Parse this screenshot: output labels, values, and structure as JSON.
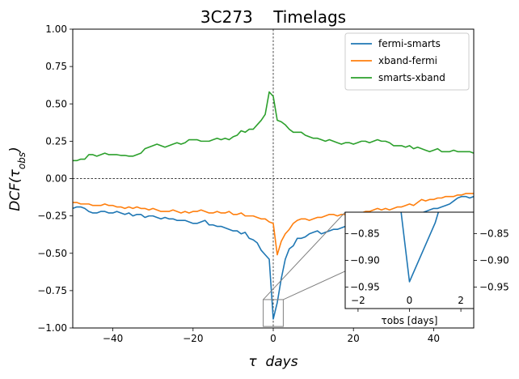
{
  "chart_data": {
    "type": "line",
    "title": "3C273    Timelags",
    "xlabel": "τ  days",
    "ylabel": "DCF(τobs)",
    "xlim": [
      -50,
      50
    ],
    "ylim": [
      -1.0,
      1.0
    ],
    "xticks": [
      -40,
      -20,
      0,
      20,
      40
    ],
    "yticks": [
      -1.0,
      -0.75,
      -0.5,
      -0.25,
      0.0,
      0.25,
      0.5,
      0.75,
      1.0
    ],
    "xtick_labels": [
      "−40",
      "−20",
      "0",
      "20",
      "40"
    ],
    "ytick_labels": [
      "−1.00",
      "−0.75",
      "−0.50",
      "−0.25",
      "0.00",
      "0.25",
      "0.50",
      "0.75",
      "1.00"
    ],
    "reference_lines": {
      "horizontal": 0.0,
      "vertical": 0.0,
      "style": "dashed"
    },
    "legend_position": "top-right",
    "series": [
      {
        "name": "fermi-smarts",
        "color": "#1f77b4",
        "x": [
          -50,
          -49,
          -48,
          -47,
          -46,
          -45,
          -44,
          -43,
          -42,
          -41,
          -40,
          -39,
          -38,
          -37,
          -36,
          -35,
          -34,
          -33,
          -32,
          -31,
          -30,
          -29,
          -28,
          -27,
          -26,
          -25,
          -24,
          -23,
          -22,
          -21,
          -20,
          -19,
          -18,
          -17,
          -16,
          -15,
          -14,
          -13,
          -12,
          -11,
          -10,
          -9,
          -8,
          -7,
          -6,
          -5,
          -4,
          -3,
          -2,
          -1,
          0,
          1,
          2,
          3,
          4,
          5,
          6,
          7,
          8,
          9,
          10,
          11,
          12,
          13,
          14,
          15,
          16,
          17,
          18,
          19,
          20,
          21,
          22,
          23,
          24,
          25,
          26,
          27,
          28,
          29,
          30,
          31,
          32,
          33,
          34,
          35,
          36,
          37,
          38,
          39,
          40,
          41,
          42,
          43,
          44,
          45,
          46,
          47,
          48,
          49,
          50
        ],
        "y": [
          -0.2,
          -0.19,
          -0.19,
          -0.2,
          -0.22,
          -0.23,
          -0.23,
          -0.22,
          -0.22,
          -0.23,
          -0.23,
          -0.22,
          -0.23,
          -0.24,
          -0.23,
          -0.25,
          -0.24,
          -0.24,
          -0.26,
          -0.25,
          -0.25,
          -0.26,
          -0.27,
          -0.26,
          -0.27,
          -0.27,
          -0.28,
          -0.28,
          -0.28,
          -0.29,
          -0.3,
          -0.3,
          -0.29,
          -0.28,
          -0.31,
          -0.31,
          -0.32,
          -0.32,
          -0.33,
          -0.34,
          -0.35,
          -0.35,
          -0.37,
          -0.36,
          -0.4,
          -0.41,
          -0.43,
          -0.48,
          -0.51,
          -0.54,
          -0.94,
          -0.83,
          -0.67,
          -0.54,
          -0.47,
          -0.45,
          -0.4,
          -0.4,
          -0.39,
          -0.37,
          -0.36,
          -0.35,
          -0.37,
          -0.36,
          -0.35,
          -0.34,
          -0.34,
          -0.33,
          -0.32,
          -0.32,
          -0.31,
          -0.3,
          -0.3,
          -0.29,
          -0.28,
          -0.29,
          -0.28,
          -0.27,
          -0.27,
          -0.26,
          -0.25,
          -0.25,
          -0.26,
          -0.25,
          -0.24,
          -0.23,
          -0.23,
          -0.23,
          -0.22,
          -0.21,
          -0.2,
          -0.2,
          -0.19,
          -0.18,
          -0.17,
          -0.15,
          -0.13,
          -0.12,
          -0.12,
          -0.13,
          -0.12
        ]
      },
      {
        "name": "xband-fermi",
        "color": "#ff7f0e",
        "x": [
          -50,
          -49,
          -48,
          -47,
          -46,
          -45,
          -44,
          -43,
          -42,
          -41,
          -40,
          -39,
          -38,
          -37,
          -36,
          -35,
          -34,
          -33,
          -32,
          -31,
          -30,
          -29,
          -28,
          -27,
          -26,
          -25,
          -24,
          -23,
          -22,
          -21,
          -20,
          -19,
          -18,
          -17,
          -16,
          -15,
          -14,
          -13,
          -12,
          -11,
          -10,
          -9,
          -8,
          -7,
          -6,
          -5,
          -4,
          -3,
          -2,
          -1,
          0,
          1,
          2,
          3,
          4,
          5,
          6,
          7,
          8,
          9,
          10,
          11,
          12,
          13,
          14,
          15,
          16,
          17,
          18,
          19,
          20,
          21,
          22,
          23,
          24,
          25,
          26,
          27,
          28,
          29,
          30,
          31,
          32,
          33,
          34,
          35,
          36,
          37,
          38,
          39,
          40,
          41,
          42,
          43,
          44,
          45,
          46,
          47,
          48,
          49,
          50
        ],
        "y": [
          -0.16,
          -0.16,
          -0.17,
          -0.17,
          -0.17,
          -0.18,
          -0.18,
          -0.18,
          -0.17,
          -0.18,
          -0.18,
          -0.19,
          -0.19,
          -0.2,
          -0.19,
          -0.2,
          -0.19,
          -0.2,
          -0.2,
          -0.21,
          -0.2,
          -0.21,
          -0.22,
          -0.22,
          -0.22,
          -0.21,
          -0.22,
          -0.23,
          -0.22,
          -0.23,
          -0.22,
          -0.22,
          -0.21,
          -0.22,
          -0.23,
          -0.23,
          -0.22,
          -0.23,
          -0.23,
          -0.22,
          -0.24,
          -0.24,
          -0.23,
          -0.25,
          -0.25,
          -0.25,
          -0.26,
          -0.27,
          -0.27,
          -0.29,
          -0.3,
          -0.51,
          -0.42,
          -0.37,
          -0.34,
          -0.3,
          -0.28,
          -0.27,
          -0.27,
          -0.28,
          -0.27,
          -0.26,
          -0.26,
          -0.25,
          -0.24,
          -0.24,
          -0.25,
          -0.24,
          -0.24,
          -0.23,
          -0.24,
          -0.23,
          -0.23,
          -0.22,
          -0.22,
          -0.21,
          -0.2,
          -0.21,
          -0.2,
          -0.21,
          -0.2,
          -0.19,
          -0.19,
          -0.18,
          -0.17,
          -0.18,
          -0.16,
          -0.14,
          -0.15,
          -0.14,
          -0.14,
          -0.13,
          -0.13,
          -0.12,
          -0.12,
          -0.12,
          -0.11,
          -0.11,
          -0.1,
          -0.1,
          -0.1
        ]
      },
      {
        "name": "smarts-xband",
        "color": "#2ca02c",
        "x": [
          -50,
          -49,
          -48,
          -47,
          -46,
          -45,
          -44,
          -43,
          -42,
          -41,
          -40,
          -39,
          -38,
          -37,
          -36,
          -35,
          -34,
          -33,
          -32,
          -31,
          -30,
          -29,
          -28,
          -27,
          -26,
          -25,
          -24,
          -23,
          -22,
          -21,
          -20,
          -19,
          -18,
          -17,
          -16,
          -15,
          -14,
          -13,
          -12,
          -11,
          -10,
          -9,
          -8,
          -7,
          -6,
          -5,
          -4,
          -3,
          -2,
          -1,
          0,
          1,
          2,
          3,
          4,
          5,
          6,
          7,
          8,
          9,
          10,
          11,
          12,
          13,
          14,
          15,
          16,
          17,
          18,
          19,
          20,
          21,
          22,
          23,
          24,
          25,
          26,
          27,
          28,
          29,
          30,
          31,
          32,
          33,
          34,
          35,
          36,
          37,
          38,
          39,
          40,
          41,
          42,
          43,
          44,
          45,
          46,
          47,
          48,
          49,
          50
        ],
        "y": [
          0.12,
          0.12,
          0.13,
          0.13,
          0.16,
          0.16,
          0.15,
          0.16,
          0.17,
          0.16,
          0.16,
          0.16,
          0.155,
          0.155,
          0.15,
          0.15,
          0.16,
          0.17,
          0.2,
          0.21,
          0.22,
          0.23,
          0.22,
          0.21,
          0.22,
          0.23,
          0.24,
          0.23,
          0.24,
          0.26,
          0.26,
          0.26,
          0.25,
          0.25,
          0.25,
          0.26,
          0.27,
          0.26,
          0.27,
          0.26,
          0.28,
          0.29,
          0.32,
          0.31,
          0.33,
          0.33,
          0.36,
          0.39,
          0.43,
          0.58,
          0.55,
          0.39,
          0.38,
          0.36,
          0.33,
          0.31,
          0.31,
          0.31,
          0.29,
          0.28,
          0.27,
          0.27,
          0.26,
          0.25,
          0.26,
          0.25,
          0.24,
          0.23,
          0.24,
          0.24,
          0.23,
          0.24,
          0.25,
          0.25,
          0.24,
          0.25,
          0.26,
          0.25,
          0.25,
          0.24,
          0.22,
          0.22,
          0.22,
          0.21,
          0.22,
          0.2,
          0.21,
          0.2,
          0.19,
          0.18,
          0.19,
          0.2,
          0.18,
          0.18,
          0.18,
          0.19,
          0.18,
          0.18,
          0.18,
          0.18,
          0.17
        ]
      }
    ],
    "inset": {
      "xlim": [
        -2.5,
        2.5
      ],
      "ylim": [
        -0.99,
        -0.81
      ],
      "xticks": [
        -2,
        0,
        2
      ],
      "yticks": [
        -0.95,
        -0.9,
        -0.85
      ],
      "xtick_labels": [
        "−2",
        "0",
        "2"
      ],
      "ytick_labels": [
        "−0.95",
        "−0.90",
        "−0.85"
      ],
      "xlabel": "τobs [days]",
      "indicated_region": {
        "x": [
          -2.5,
          2.5
        ],
        "y": [
          -0.99,
          -0.81
        ]
      }
    }
  }
}
